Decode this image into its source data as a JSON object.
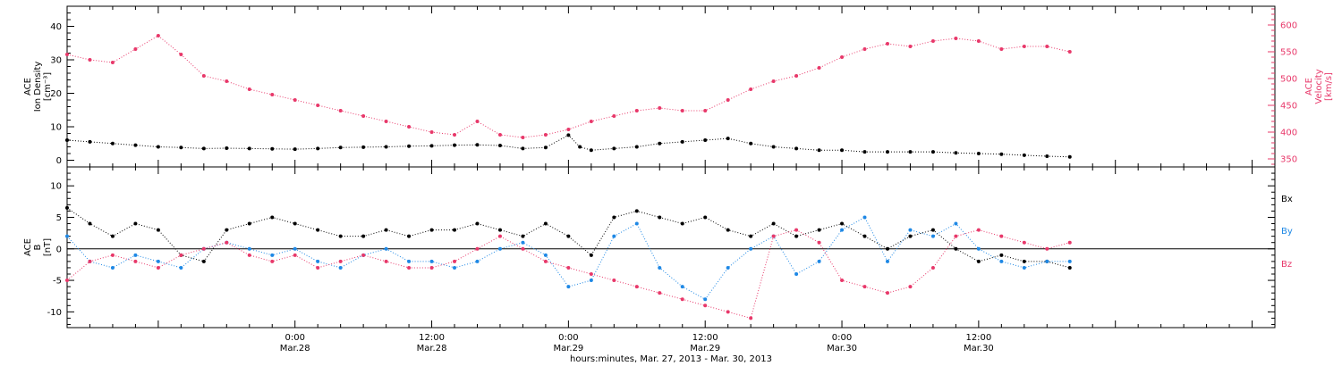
{
  "colors": {
    "black": "#000000",
    "pink": "#e8386a",
    "blue": "#1e88e5"
  },
  "x_axis": {
    "label": "hours:minutes, Mar. 27, 2013 - Mar. 30, 2013",
    "range_hours": [
      -20,
      86
    ],
    "major_ticks": [
      {
        "hour": 0,
        "time": "0:00",
        "date": "Mar.28"
      },
      {
        "hour": 12,
        "time": "12:00",
        "date": "Mar.28"
      },
      {
        "hour": 24,
        "time": "0:00",
        "date": "Mar.29"
      },
      {
        "hour": 36,
        "time": "12:00",
        "date": "Mar.29"
      },
      {
        "hour": 48,
        "time": "0:00",
        "date": "Mar.30"
      },
      {
        "hour": 60,
        "time": "12:00",
        "date": "Mar.30"
      }
    ]
  },
  "chart_data": [
    {
      "type": "scatter",
      "panel": "top",
      "ylabel_lines": [
        "ACE",
        "Ion Density",
        "[cm⁻³]"
      ],
      "ylabel2_lines": [
        "ACE",
        "Velocity",
        "[km/s]"
      ],
      "ylim": [
        -2,
        46
      ],
      "yticks": [
        0,
        10,
        20,
        30,
        40
      ],
      "y2lim": [
        335,
        635
      ],
      "y2ticks": [
        350,
        400,
        450,
        500,
        550,
        600
      ],
      "series": [
        {
          "name": "",
          "axis": "left",
          "color": "#000000",
          "x": [
            -20,
            -18,
            -16,
            -14,
            -12,
            -10,
            -8,
            -6,
            -4,
            -2,
            0,
            2,
            4,
            6,
            8,
            10,
            12,
            14,
            16,
            18,
            20,
            22,
            24,
            25,
            26,
            28,
            30,
            32,
            34,
            36,
            38,
            40,
            42,
            44,
            46,
            48,
            50,
            52,
            54,
            56,
            58,
            60,
            62,
            64,
            66,
            68
          ],
          "y": [
            6,
            5.5,
            5,
            4.5,
            4,
            3.8,
            3.5,
            3.6,
            3.5,
            3.4,
            3.3,
            3.5,
            3.8,
            3.9,
            4.0,
            4.2,
            4.3,
            4.5,
            4.6,
            4.4,
            3.5,
            3.8,
            7.5,
            4,
            3,
            3.5,
            4,
            5,
            5.5,
            6,
            6.5,
            5,
            4,
            3.5,
            3,
            3,
            2.5,
            2.5,
            2.5,
            2.5,
            2.2,
            2,
            1.8,
            1.5,
            1.2,
            1
          ]
        },
        {
          "name": "",
          "axis": "right",
          "color": "#e8386a",
          "x": [
            -20,
            -18,
            -16,
            -14,
            -12,
            -10,
            -8,
            -6,
            -4,
            -2,
            0,
            2,
            4,
            6,
            8,
            10,
            12,
            14,
            16,
            18,
            20,
            22,
            24,
            26,
            28,
            30,
            32,
            34,
            36,
            38,
            40,
            42,
            44,
            46,
            48,
            50,
            52,
            54,
            56,
            58,
            60,
            62,
            64,
            66,
            68
          ],
          "y": [
            545,
            535,
            530,
            555,
            580,
            545,
            505,
            495,
            480,
            470,
            460,
            450,
            440,
            430,
            420,
            410,
            400,
            395,
            420,
            395,
            390,
            395,
            405,
            420,
            430,
            440,
            445,
            440,
            440,
            460,
            480,
            495,
            505,
            520,
            540,
            555,
            565,
            560,
            570,
            575,
            570,
            555,
            560,
            560,
            550
          ]
        }
      ]
    },
    {
      "type": "scatter",
      "panel": "bottom",
      "ylabel_lines": [
        "ACE",
        "B",
        "[nT]"
      ],
      "ylim": [
        -12.5,
        13
      ],
      "yticks": [
        -10,
        -5,
        0,
        5,
        10
      ],
      "legend": [
        "Bx",
        "By",
        "Bz"
      ],
      "series": [
        {
          "name": "Bx",
          "color": "#000000",
          "x": [
            -20,
            -18,
            -16,
            -14,
            -12,
            -10,
            -8,
            -6,
            -4,
            -2,
            0,
            2,
            4,
            6,
            8,
            10,
            12,
            14,
            16,
            18,
            20,
            22,
            24,
            26,
            28,
            30,
            32,
            34,
            36,
            38,
            40,
            42,
            44,
            46,
            48,
            50,
            52,
            54,
            56,
            58,
            60,
            62,
            64,
            66,
            68
          ],
          "y": [
            6.5,
            4,
            2,
            4,
            3,
            -1,
            -2,
            3,
            4,
            5,
            4,
            3,
            2,
            2,
            3,
            2,
            3,
            3,
            4,
            3,
            2,
            4,
            2,
            -1,
            5,
            6,
            5,
            4,
            5,
            3,
            2,
            4,
            2,
            3,
            4,
            2,
            0,
            2,
            3,
            0,
            -2,
            -1,
            -2,
            -2,
            -3
          ]
        },
        {
          "name": "By",
          "color": "#1e88e5",
          "x": [
            -20,
            -18,
            -16,
            -14,
            -12,
            -10,
            -8,
            -6,
            -4,
            -2,
            0,
            2,
            4,
            6,
            8,
            10,
            12,
            14,
            16,
            18,
            20,
            22,
            24,
            26,
            28,
            30,
            32,
            34,
            36,
            38,
            40,
            42,
            44,
            46,
            48,
            50,
            52,
            54,
            56,
            58,
            60,
            62,
            64,
            66,
            68
          ],
          "y": [
            2,
            -2,
            -3,
            -1,
            -2,
            -3,
            0,
            1,
            0,
            -1,
            0,
            -2,
            -3,
            -1,
            0,
            -2,
            -2,
            -3,
            -2,
            0,
            1,
            -1,
            -6,
            -5,
            2,
            4,
            -3,
            -6,
            -8,
            -3,
            0,
            2,
            -4,
            -2,
            3,
            5,
            -2,
            3,
            2,
            4,
            0,
            -2,
            -3,
            -2,
            -2
          ]
        },
        {
          "name": "Bz",
          "color": "#e8386a",
          "x": [
            -20,
            -18,
            -16,
            -14,
            -12,
            -10,
            -8,
            -6,
            -4,
            -2,
            0,
            2,
            4,
            6,
            8,
            10,
            12,
            14,
            16,
            18,
            20,
            22,
            24,
            26,
            28,
            30,
            32,
            34,
            36,
            38,
            40,
            42,
            44,
            46,
            48,
            50,
            52,
            54,
            56,
            58,
            60,
            62,
            64,
            66,
            68
          ],
          "y": [
            -5,
            -2,
            -1,
            -2,
            -3,
            -1,
            0,
            1,
            -1,
            -2,
            -1,
            -3,
            -2,
            -1,
            -2,
            -3,
            -3,
            -2,
            0,
            2,
            0,
            -2,
            -3,
            -4,
            -5,
            -6,
            -7,
            -8,
            -9,
            -10,
            -11,
            2,
            3,
            1,
            -5,
            -6,
            -7,
            -6,
            -3,
            2,
            3,
            2,
            1,
            0,
            1
          ]
        }
      ]
    }
  ]
}
